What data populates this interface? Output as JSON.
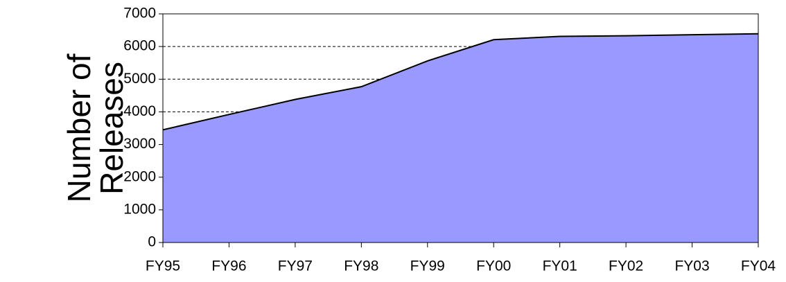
{
  "chart_data": {
    "type": "area",
    "ylabel": [
      "Number of",
      "Releases"
    ],
    "categories": [
      "FY95",
      "FY96",
      "FY97",
      "FY98",
      "FY99",
      "FY00",
      "FY01",
      "FY02",
      "FY03",
      "FY04"
    ],
    "values": [
      3450,
      3920,
      4380,
      4770,
      5560,
      6210,
      6310,
      6330,
      6360,
      6390
    ],
    "color": "#9999ff",
    "ylim": [
      0,
      7000
    ],
    "yticks": [
      0,
      1000,
      2000,
      3000,
      4000,
      5000,
      6000,
      7000
    ],
    "grid": true
  }
}
